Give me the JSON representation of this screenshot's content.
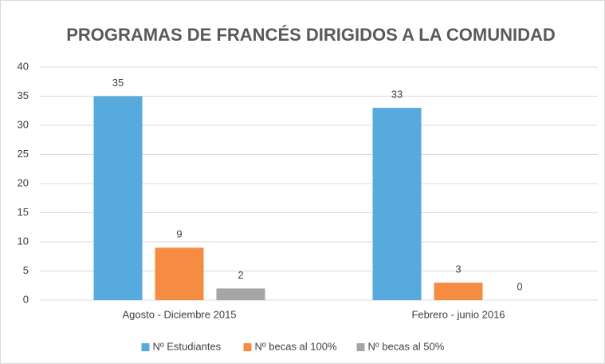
{
  "chart_data": {
    "type": "bar",
    "title": "PROGRAMAS DE FRANCÉS DIRIGIDOS A LA COMUNIDAD",
    "categories": [
      "Agosto - Diciembre 2015",
      "Febrero - junio 2016"
    ],
    "series": [
      {
        "name": "Nº Estudiantes",
        "color": "#56aade",
        "values": [
          35,
          33
        ]
      },
      {
        "name": "Nº becas al 100%",
        "color": "#f58c41",
        "values": [
          9,
          3
        ]
      },
      {
        "name": "Nº becas al 50%",
        "color": "#a5a5a5",
        "values": [
          2,
          0
        ]
      }
    ],
    "ylim": [
      0,
      40
    ],
    "yticks": [
      0,
      5,
      10,
      15,
      20,
      25,
      30,
      35,
      40
    ],
    "grid": true,
    "legend": "bottom"
  }
}
